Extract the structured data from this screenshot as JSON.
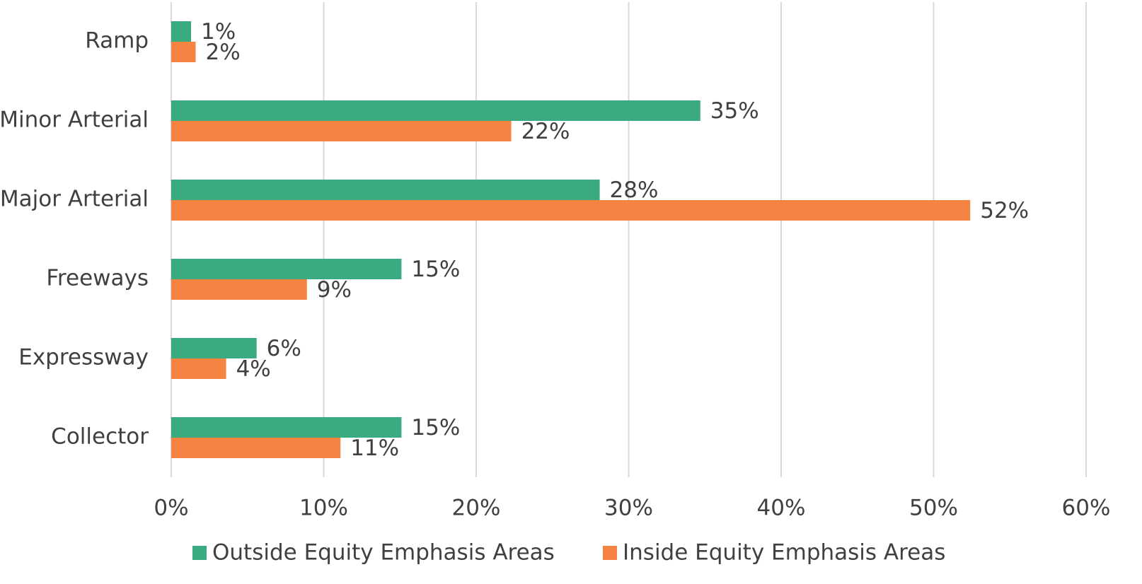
{
  "chart_data": {
    "type": "hbar",
    "categories": [
      "Ramp",
      "Minor Arterial",
      "Major Arterial",
      "Freeways",
      "Expressway",
      "Collector"
    ],
    "series": [
      {
        "name": "Outside Equity Emphasis Areas",
        "color": "#3aaa80",
        "values": [
          1.3,
          34.7,
          28.1,
          15.1,
          5.6,
          15.1
        ],
        "value_labels": [
          "1%",
          "35%",
          "28%",
          "15%",
          "6%",
          "15%"
        ]
      },
      {
        "name": "Inside Equity Emphasis Areas",
        "color": "#f58442",
        "values": [
          1.6,
          22.3,
          52.4,
          8.9,
          3.6,
          11.1
        ],
        "value_labels": [
          "2%",
          "22%",
          "52%",
          "9%",
          "4%",
          "11%"
        ]
      }
    ],
    "xlim": [
      0,
      60
    ],
    "xticks": [
      {
        "value": 0,
        "label": "0%"
      },
      {
        "value": 10,
        "label": "10%"
      },
      {
        "value": 20,
        "label": "20%"
      },
      {
        "value": 30,
        "label": "30%"
      },
      {
        "value": 40,
        "label": "40%"
      },
      {
        "value": 50,
        "label": "50%"
      },
      {
        "value": 60,
        "label": "60%"
      }
    ],
    "grid": true,
    "legend": "bottom"
  }
}
